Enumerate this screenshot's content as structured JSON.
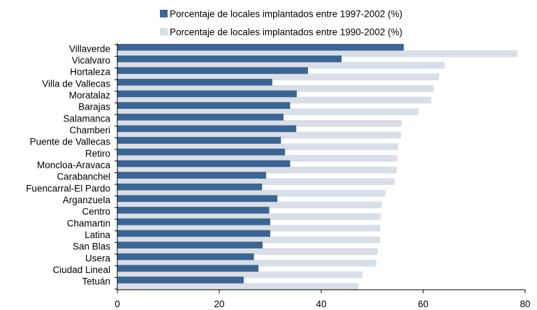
{
  "chart_data": {
    "type": "bar",
    "orientation": "horizontal",
    "title": "",
    "xlabel": "",
    "ylabel": "",
    "xlim": [
      0,
      80
    ],
    "x_ticks": [
      "0",
      "20",
      "40",
      "60",
      "80"
    ],
    "grid": false,
    "legend_position": "top",
    "categories": [
      "Villaverde",
      "Vicalvaro",
      "Hortaleza",
      "Villa de Vallecas",
      "Moratalaz",
      "Barajas",
      "Salamanca",
      "Chamberi",
      "Puente de Vallecas",
      "Retiro",
      "Moncloa-Aravaca",
      "Carabanchel",
      "Fuencarral-El Pardo",
      "Arganzuela",
      "Centro",
      "Chamartin",
      "Latina",
      "San Blas",
      "Usera",
      "Ciudad Lineal",
      "Tetuán"
    ],
    "series": [
      {
        "name": "Porcentaje de locales implantados entre 1997-2002 (%)",
        "color": "#3d6593",
        "values": [
          56.2,
          44.0,
          37.4,
          30.4,
          35.2,
          33.9,
          32.6,
          35.1,
          32.1,
          32.9,
          33.9,
          29.2,
          28.4,
          31.4,
          29.8,
          30.0,
          30.0,
          28.5,
          26.8,
          27.7,
          24.8
        ]
      },
      {
        "name": "Porcentaje de locales implantados entre 1990-2002 (%)",
        "color": "#d9dfe8",
        "values": [
          78.5,
          64.2,
          63.1,
          62.1,
          61.6,
          59.1,
          55.8,
          55.7,
          55.1,
          54.9,
          54.8,
          54.4,
          52.6,
          51.9,
          51.7,
          51.6,
          51.6,
          51.1,
          50.8,
          48.1,
          47.3
        ]
      }
    ]
  }
}
